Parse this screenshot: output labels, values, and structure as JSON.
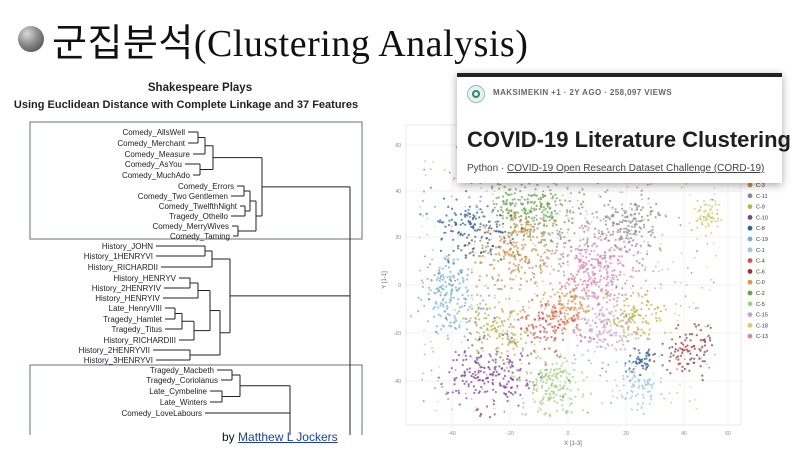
{
  "slide": {
    "title": "군집분석(Clustering Analysis)"
  },
  "dendrogram": {
    "title_line1": "Shakespeare Plays",
    "title_line2": "Using Euclidean Distance with Complete Linkage and 37 Features",
    "leaves": [
      "Comedy_AllsWell",
      "Comedy_Merchant",
      "Comedy_Measure",
      "Comedy_AsYou",
      "Comedy_MuchAdo",
      "Comedy_Errors",
      "Comedy_Two Gentlemen",
      "Comedy_TwelfthNight",
      "Tragedy_Othello",
      "Comedy_MerryWives",
      "Comedy_Taming",
      "History_JOHN",
      "History_1HENRYVI",
      "History_RICHARDII",
      "History_HENRYV",
      "History_2HENRYIV",
      "History_HENRYIV",
      "Late_HenryVIII",
      "Tragedy_Hamlet",
      "Tragedy_Titus",
      "History_RICHARDIII",
      "History_2HENRYVII",
      "History_3HENRYVI",
      "Tragedy_Macbeth",
      "Tragedy_Coriolanus",
      "Late_Cymbeline",
      "Late_Winters",
      "Comedy_LoveLabours"
    ]
  },
  "credit": {
    "prefix": "by",
    "author": "Matthew L Jockers"
  },
  "covid_card": {
    "meta": "MAKSIMEKIN +1 · 2Y AGO · 258,097 VIEWS",
    "title": "COVID-19 Literature Clustering",
    "language": "Python",
    "separator": "·",
    "competition": "COVID-19 Open Research Dataset Challenge (CORD-19)"
  },
  "scatter": {
    "xlabel": "X [1-3]",
    "ylabel": "Y [1-1]",
    "xticks": [
      "-40",
      "-20",
      "0",
      "20",
      "40",
      "60"
    ],
    "yticks": [
      "60",
      "40",
      "20",
      "0",
      "-20",
      "-40"
    ],
    "legend": [
      {
        "label": "C-3",
        "color": "#d98a3c"
      },
      {
        "label": "C-11",
        "color": "#8c8c8c"
      },
      {
        "label": "C-9",
        "color": "#b8b83a"
      },
      {
        "label": "C-10",
        "color": "#7b3fa0"
      },
      {
        "label": "C-8",
        "color": "#2f5f9e"
      },
      {
        "label": "C-19",
        "color": "#6fb0d8"
      },
      {
        "label": "C-1",
        "color": "#9cc6e6"
      },
      {
        "label": "C-4",
        "color": "#e04a4a"
      },
      {
        "label": "C-6",
        "color": "#a33030"
      },
      {
        "label": "C-0",
        "color": "#e9943a"
      },
      {
        "label": "C-2",
        "color": "#5aa84a"
      },
      {
        "label": "C-5",
        "color": "#9dd37a"
      },
      {
        "label": "C-15",
        "color": "#c9a0d6"
      },
      {
        "label": "C-18",
        "color": "#cfcf6a"
      },
      {
        "label": "C-13",
        "color": "#e07fb0"
      }
    ]
  }
}
